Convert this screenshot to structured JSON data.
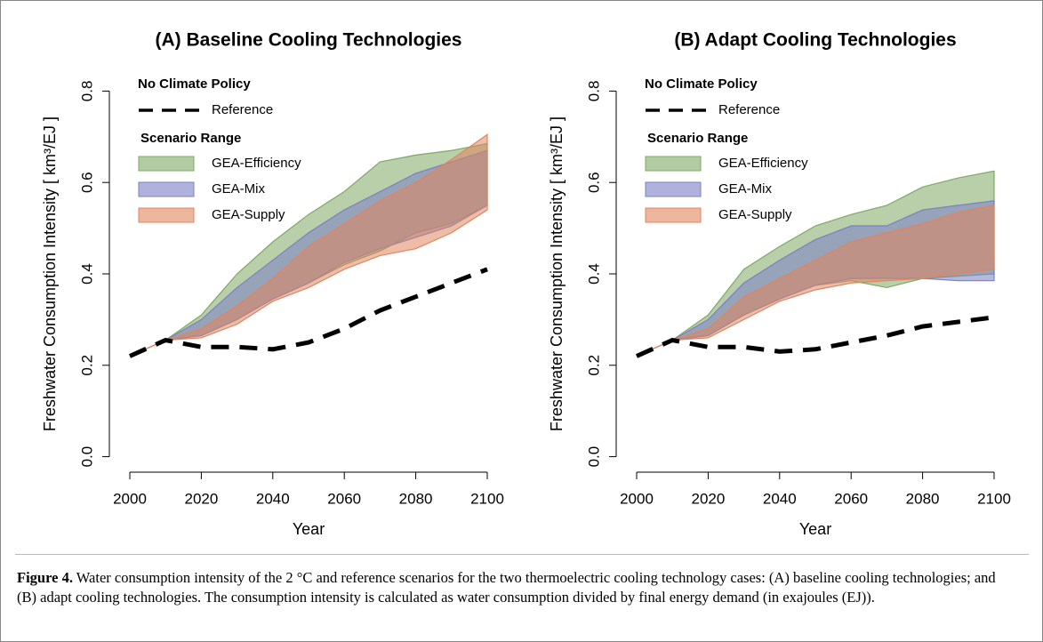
{
  "chart_data": [
    {
      "type": "area",
      "title": "(A) Baseline Cooling Technologies",
      "xlabel": "Year",
      "ylabel": "Freshwater Consumption Intensity [ km³/EJ ]",
      "legend_headings": [
        "No Climate Policy",
        "Scenario Range"
      ],
      "x": [
        2000,
        2010,
        2020,
        2030,
        2040,
        2050,
        2060,
        2070,
        2080,
        2090,
        2100
      ],
      "xlim": [
        1996,
        2104
      ],
      "xticks": [
        2000,
        2020,
        2040,
        2060,
        2080,
        2100
      ],
      "ylim": [
        -0.03,
        0.83
      ],
      "yticks": [
        {
          "value": 0,
          "label": "0.0"
        },
        0.2,
        0.4,
        0.6,
        0.8
      ],
      "series": [
        {
          "name": "GEA-Efficiency",
          "color": "#7fa865",
          "low": [
            0.22,
            0.255,
            0.265,
            0.3,
            0.345,
            0.38,
            0.42,
            0.45,
            0.49,
            0.51,
            0.55
          ],
          "high": [
            0.22,
            0.255,
            0.31,
            0.4,
            0.47,
            0.53,
            0.58,
            0.645,
            0.66,
            0.67,
            0.685
          ]
        },
        {
          "name": "GEA-Mix",
          "color": "#7a80c4",
          "low": [
            0.22,
            0.255,
            0.265,
            0.3,
            0.345,
            0.38,
            0.425,
            0.455,
            0.48,
            0.505,
            0.55
          ],
          "high": [
            0.22,
            0.255,
            0.3,
            0.37,
            0.43,
            0.49,
            0.54,
            0.58,
            0.62,
            0.645,
            0.67
          ]
        },
        {
          "name": "GEA-Supply",
          "color": "#e0855f",
          "low": [
            0.22,
            0.255,
            0.26,
            0.29,
            0.34,
            0.37,
            0.41,
            0.44,
            0.455,
            0.49,
            0.54
          ],
          "high": [
            0.22,
            0.255,
            0.28,
            0.33,
            0.39,
            0.46,
            0.51,
            0.56,
            0.6,
            0.65,
            0.705
          ]
        }
      ],
      "reference": {
        "name": "Reference",
        "color": "#000000",
        "style": "dashed",
        "values": [
          0.22,
          0.255,
          0.24,
          0.24,
          0.235,
          0.25,
          0.28,
          0.32,
          0.35,
          0.38,
          0.41
        ]
      }
    },
    {
      "type": "area",
      "title": "(B) Adapt Cooling Technologies",
      "xlabel": "Year",
      "ylabel": "Freshwater Consumption Intensity [ km³/EJ ]",
      "legend_headings": [
        "No Climate Policy",
        "Scenario Range"
      ],
      "x": [
        2000,
        2010,
        2020,
        2030,
        2040,
        2050,
        2060,
        2070,
        2080,
        2090,
        2100
      ],
      "xlim": [
        1996,
        2104
      ],
      "xticks": [
        2000,
        2020,
        2040,
        2060,
        2080,
        2100
      ],
      "ylim": [
        -0.03,
        0.83
      ],
      "yticks": [
        {
          "value": 0,
          "label": "0.0"
        },
        0.2,
        0.4,
        0.6,
        0.8
      ],
      "series": [
        {
          "name": "GEA-Efficiency",
          "color": "#7fa865",
          "low": [
            0.22,
            0.255,
            0.265,
            0.31,
            0.345,
            0.375,
            0.385,
            0.37,
            0.39,
            0.395,
            0.4
          ],
          "high": [
            0.22,
            0.255,
            0.31,
            0.41,
            0.46,
            0.505,
            0.53,
            0.55,
            0.59,
            0.61,
            0.625
          ]
        },
        {
          "name": "GEA-Mix",
          "color": "#7a80c4",
          "low": [
            0.22,
            0.255,
            0.265,
            0.31,
            0.345,
            0.375,
            0.39,
            0.39,
            0.39,
            0.385,
            0.385
          ],
          "high": [
            0.22,
            0.255,
            0.3,
            0.38,
            0.43,
            0.475,
            0.505,
            0.505,
            0.54,
            0.55,
            0.56
          ]
        },
        {
          "name": "GEA-Supply",
          "color": "#e0855f",
          "low": [
            0.22,
            0.255,
            0.26,
            0.3,
            0.34,
            0.365,
            0.38,
            0.385,
            0.39,
            0.4,
            0.41
          ],
          "high": [
            0.22,
            0.255,
            0.28,
            0.35,
            0.39,
            0.43,
            0.47,
            0.49,
            0.51,
            0.535,
            0.55
          ]
        }
      ],
      "reference": {
        "name": "Reference",
        "color": "#000000",
        "style": "dashed",
        "values": [
          0.22,
          0.255,
          0.24,
          0.24,
          0.23,
          0.235,
          0.25,
          0.265,
          0.285,
          0.295,
          0.305
        ]
      }
    }
  ],
  "caption": {
    "label": "Figure 4.",
    "text": "Water consumption intensity of the 2 °C and reference scenarios for the two thermoelectric cooling technology cases: (A) baseline cooling technologies; and (B) adapt cooling technologies. The consumption intensity is calculated as water consumption divided by final energy demand (in exajoules (EJ))."
  }
}
